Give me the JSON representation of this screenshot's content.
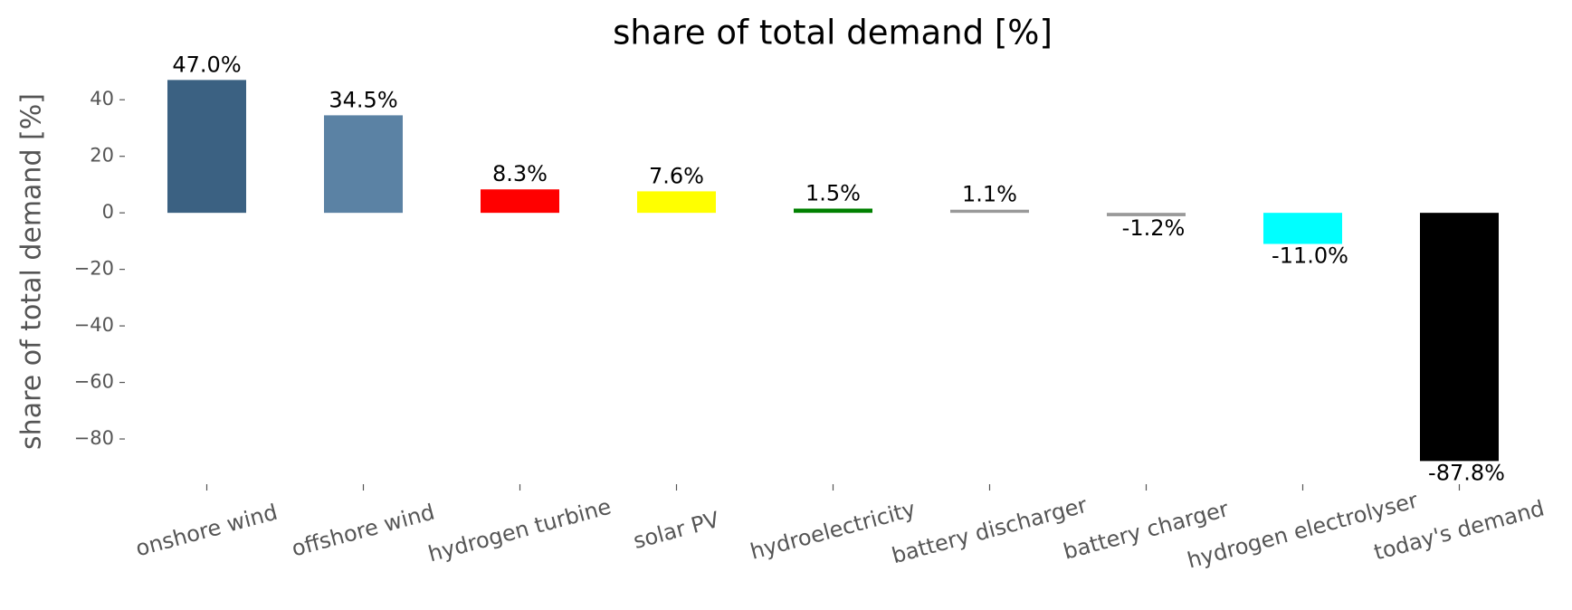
{
  "chart_data": {
    "type": "bar",
    "title": "share of total demand [%]",
    "y_label": "share of total demand [%]",
    "categories": [
      "onshore wind",
      "offshore wind",
      "hydrogen turbine",
      "solar PV",
      "hydroelectricity",
      "battery discharger",
      "battery charger",
      "hydrogen electrolyser",
      "today's demand"
    ],
    "values": [
      47.0,
      34.5,
      8.3,
      7.6,
      1.5,
      1.1,
      -1.2,
      -11.0,
      -87.8
    ],
    "value_labels": [
      "47.0%",
      "34.5%",
      "8.3%",
      "7.6%",
      "1.5%",
      "1.1%",
      "-1.2%",
      "-11.0%",
      "-87.8%"
    ],
    "colors": [
      "#3b6182",
      "#5b82a4",
      "#ff0000",
      "#ffff00",
      "#008000",
      "#999999",
      "#999999",
      "#00ffff",
      "#000000"
    ],
    "ylim": [
      -96,
      50
    ],
    "yticks": [
      {
        "value": -80,
        "label": "−80"
      },
      {
        "value": -60,
        "label": "−60"
      },
      {
        "value": -40,
        "label": "−40"
      },
      {
        "value": -20,
        "label": "−20"
      },
      0,
      20,
      40
    ],
    "grid": false
  }
}
